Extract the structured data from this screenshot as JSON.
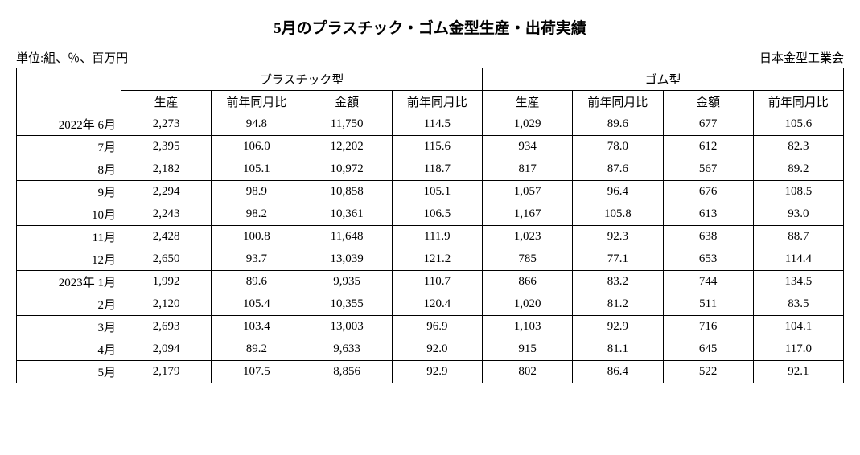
{
  "title": "5月のプラスチック・ゴム金型生産・出荷実績",
  "unit_label": "単位:組、％、百万円",
  "source_label": "日本金型工業会",
  "table": {
    "group_headers": [
      "プラスチック型",
      "ゴム型"
    ],
    "sub_headers": [
      "生産",
      "前年同月比",
      "金額",
      "前年同月比",
      "生産",
      "前年同月比",
      "金額",
      "前年同月比"
    ],
    "rows": [
      {
        "period": "2022年  6月",
        "cells": [
          "2,273",
          "94.8",
          "11,750",
          "114.5",
          "1,029",
          "89.6",
          "677",
          "105.6"
        ]
      },
      {
        "period": "7月",
        "cells": [
          "2,395",
          "106.0",
          "12,202",
          "115.6",
          "934",
          "78.0",
          "612",
          "82.3"
        ]
      },
      {
        "period": "8月",
        "cells": [
          "2,182",
          "105.1",
          "10,972",
          "118.7",
          "817",
          "87.6",
          "567",
          "89.2"
        ]
      },
      {
        "period": "9月",
        "cells": [
          "2,294",
          "98.9",
          "10,858",
          "105.1",
          "1,057",
          "96.4",
          "676",
          "108.5"
        ]
      },
      {
        "period": "10月",
        "cells": [
          "2,243",
          "98.2",
          "10,361",
          "106.5",
          "1,167",
          "105.8",
          "613",
          "93.0"
        ]
      },
      {
        "period": "11月",
        "cells": [
          "2,428",
          "100.8",
          "11,648",
          "111.9",
          "1,023",
          "92.3",
          "638",
          "88.7"
        ]
      },
      {
        "period": "12月",
        "cells": [
          "2,650",
          "93.7",
          "13,039",
          "121.2",
          "785",
          "77.1",
          "653",
          "114.4"
        ]
      },
      {
        "period": "2023年  1月",
        "cells": [
          "1,992",
          "89.6",
          "9,935",
          "110.7",
          "866",
          "83.2",
          "744",
          "134.5"
        ]
      },
      {
        "period": "2月",
        "cells": [
          "2,120",
          "105.4",
          "10,355",
          "120.4",
          "1,020",
          "81.2",
          "511",
          "83.5"
        ]
      },
      {
        "period": "3月",
        "cells": [
          "2,693",
          "103.4",
          "13,003",
          "96.9",
          "1,103",
          "92.9",
          "716",
          "104.1"
        ]
      },
      {
        "period": "4月",
        "cells": [
          "2,094",
          "89.2",
          "9,633",
          "92.0",
          "915",
          "81.1",
          "645",
          "117.0"
        ]
      },
      {
        "period": "5月",
        "cells": [
          "2,179",
          "107.5",
          "8,856",
          "92.9",
          "802",
          "86.4",
          "522",
          "92.1"
        ]
      }
    ]
  },
  "style": {
    "background_color": "#ffffff",
    "text_color": "#000000",
    "border_color": "#000000",
    "title_fontsize": 19,
    "body_fontsize": 15,
    "font_family": "serif"
  }
}
